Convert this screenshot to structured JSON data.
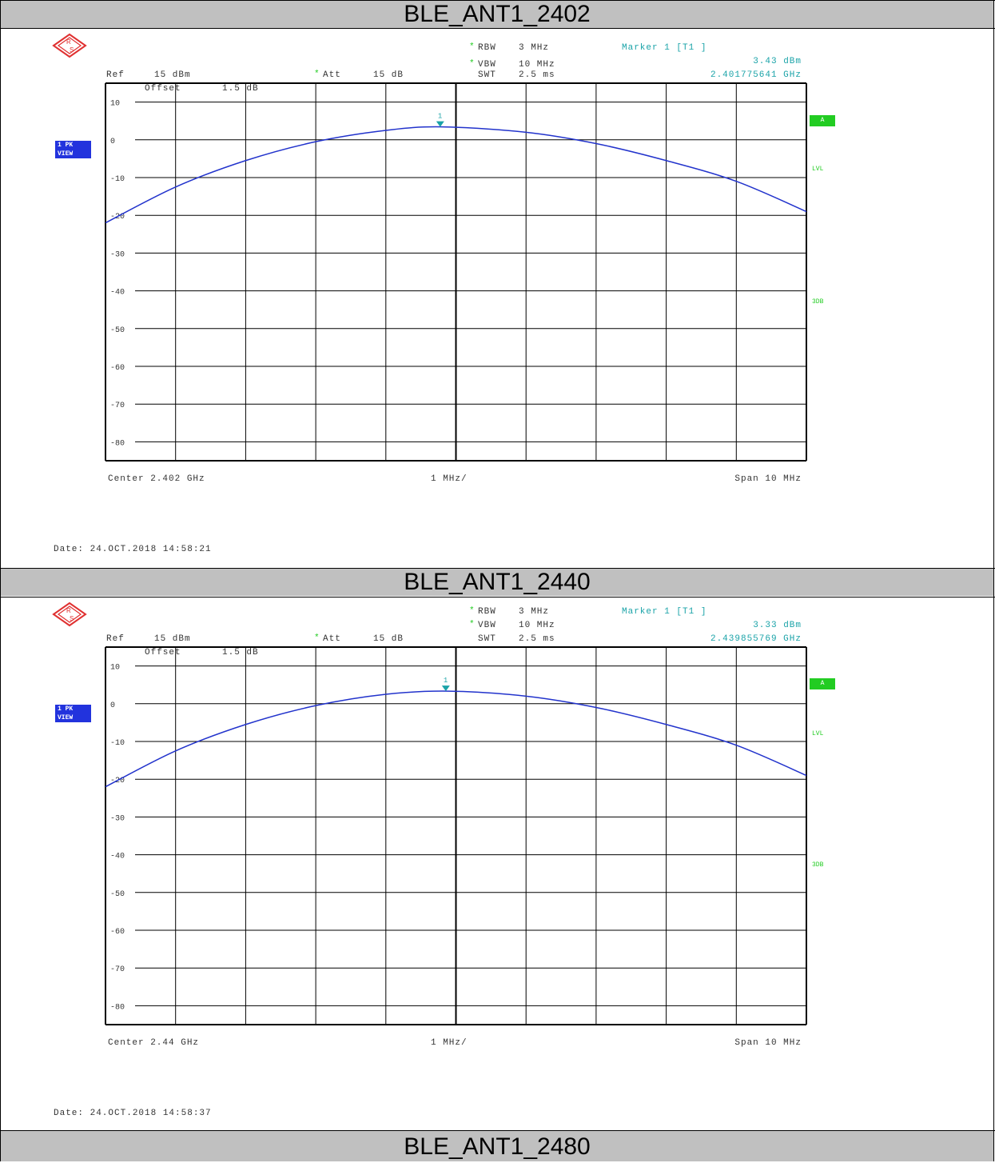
{
  "panels": [
    {
      "title": "BLE_ANT1_2402",
      "header": {
        "rbw_label": "RBW",
        "rbw_value": "3 MHz",
        "vbw_label": "VBW",
        "vbw_value": "10 MHz",
        "swt_label": "SWT",
        "swt_value": "2.5 ms",
        "ref_label": "Ref",
        "ref_value": "15 dBm",
        "att_label": "Att",
        "att_value": "15 dB",
        "marker_title": "Marker 1 [T1 ]",
        "marker_level": "3.43 dBm",
        "marker_freq": "2.401775641 GHz",
        "offset_label": "Offset",
        "offset_value": "1.5 dB"
      },
      "badges": {
        "trace_line1": "1 PK",
        "trace_line2": "VIEW",
        "a_badge": "A",
        "lvl": "LVL",
        "db3": "3DB"
      },
      "footer": {
        "center": "Center 2.402 GHz",
        "div": "1 MHz/",
        "span": "Span 10 MHz",
        "date": "Date: 24.OCT.2018  14:58:21"
      }
    },
    {
      "title": "BLE_ANT1_2440",
      "header": {
        "rbw_label": "RBW",
        "rbw_value": "3 MHz",
        "vbw_label": "VBW",
        "vbw_value": "10 MHz",
        "swt_label": "SWT",
        "swt_value": "2.5 ms",
        "ref_label": "Ref",
        "ref_value": "15 dBm",
        "att_label": "Att",
        "att_value": "15 dB",
        "marker_title": "Marker 1 [T1 ]",
        "marker_level": "3.33 dBm",
        "marker_freq": "2.439855769 GHz",
        "offset_label": "Offset",
        "offset_value": "1.5 dB"
      },
      "badges": {
        "trace_line1": "1 PK",
        "trace_line2": "VIEW",
        "a_badge": "A",
        "lvl": "LVL",
        "db3": "3DB"
      },
      "footer": {
        "center": "Center 2.44 GHz",
        "div": "1 MHz/",
        "span": "Span 10 MHz",
        "date": "Date: 24.OCT.2018  14:58:37"
      }
    },
    {
      "title": "BLE_ANT1_2480"
    }
  ],
  "colors": {
    "trace": "#2233cc",
    "marker": "#1aa3a8",
    "title_bg": "#c0c0c0",
    "badge_blue": "#2233dd",
    "badge_green": "#22cc22"
  },
  "chart_data": [
    {
      "type": "line",
      "title": "BLE_ANT1_2402",
      "xlabel": "",
      "ylabel": "",
      "x_unit": "GHz",
      "xlim": [
        2.397,
        2.407
      ],
      "ylim": [
        -85,
        15
      ],
      "y_ticks": [
        "10",
        "0",
        "-10",
        "-20",
        "-30",
        "-40",
        "-50",
        "-60",
        "-70",
        "-80"
      ],
      "y_tick_values": [
        10,
        0,
        -10,
        -20,
        -30,
        -40,
        -50,
        -60,
        -70,
        -80
      ],
      "grid": true,
      "series": [
        {
          "x": [
            2.397,
            2.398,
            2.399,
            2.4,
            2.401,
            2.4018,
            2.403,
            2.404,
            2.405,
            2.406,
            2.407
          ],
          "y": [
            -22.0,
            -12.5,
            -5.5,
            -0.5,
            2.5,
            3.43,
            2.0,
            -1.0,
            -5.5,
            -11.0,
            -19.0
          ]
        }
      ],
      "marker": {
        "label": "1",
        "x": 2.401775641,
        "y": 3.43
      }
    },
    {
      "type": "line",
      "title": "BLE_ANT1_2440",
      "xlabel": "",
      "ylabel": "",
      "x_unit": "GHz",
      "xlim": [
        2.435,
        2.445
      ],
      "ylim": [
        -85,
        15
      ],
      "y_ticks": [
        "10",
        "0",
        "-10",
        "-20",
        "-30",
        "-40",
        "-50",
        "-60",
        "-70",
        "-80"
      ],
      "y_tick_values": [
        10,
        0,
        -10,
        -20,
        -30,
        -40,
        -50,
        -60,
        -70,
        -80
      ],
      "grid": true,
      "series": [
        {
          "x": [
            2.435,
            2.436,
            2.437,
            2.438,
            2.439,
            2.4399,
            2.441,
            2.442,
            2.443,
            2.444,
            2.445
          ],
          "y": [
            -22.0,
            -12.5,
            -5.5,
            -0.5,
            2.5,
            3.33,
            2.0,
            -1.0,
            -5.5,
            -11.0,
            -19.0
          ]
        }
      ],
      "marker": {
        "label": "1",
        "x": 2.439855769,
        "y": 3.33
      }
    }
  ]
}
